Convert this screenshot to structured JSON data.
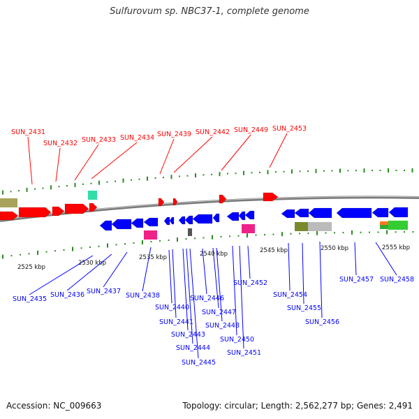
{
  "title": "Sulfurovum sp. NBC37-1, complete genome",
  "footer": {
    "accession": "Accession: NC_009663",
    "summary": "Topology: circular; Length: 2,562,277 bp; Genes: 2,491"
  },
  "colors": {
    "forward_strand": "#ff0000",
    "reverse_strand": "#0000ff",
    "backbone": "#888888",
    "ticks": "#2a8a1e"
  },
  "scale_labels": [
    "2525 kbp",
    "2530 kbp",
    "2535 kbp",
    "2540 kbp",
    "2545 kbp",
    "2550 kbp",
    "2555 kbp"
  ],
  "forward_labels": [
    "SUN_2431",
    "SUN_2432",
    "SUN_2433",
    "SUN_2434",
    "SUN_2439",
    "SUN_2442",
    "SUN_2449",
    "SUN_2453"
  ],
  "reverse_labels": [
    "SUN_2435",
    "SUN_2436",
    "SUN_2437",
    "SUN_2438",
    "SUN_2440",
    "SUN_2441",
    "SUN_2443",
    "SUN_2444",
    "SUN_2445",
    "SUN_2446",
    "SUN_2447",
    "SUN_2448",
    "SUN_2450",
    "SUN_2451",
    "SUN_2452",
    "SUN_2454",
    "SUN_2455",
    "SUN_2456",
    "SUN_2457",
    "SUN_2458"
  ]
}
